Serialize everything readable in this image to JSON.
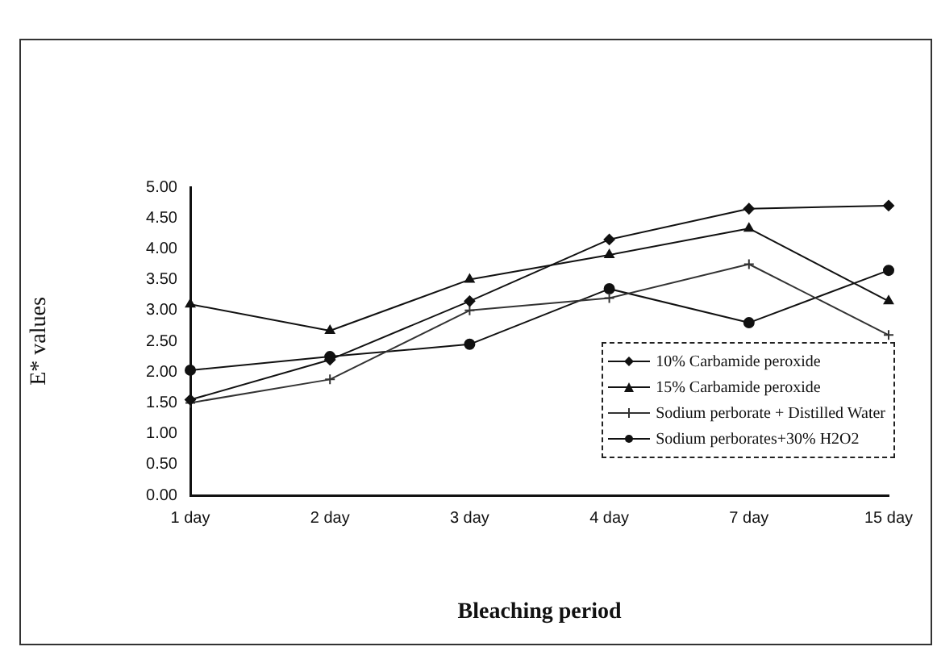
{
  "chart_data": {
    "type": "line",
    "xlabel": "Bleaching period",
    "ylabel": "E* values",
    "categories": [
      "1 day",
      "2 day",
      "3 day",
      "4 day",
      "7 day",
      "15 day"
    ],
    "ylim": [
      0,
      5
    ],
    "yticks": [
      {
        "value": 0,
        "label": "0.00"
      },
      {
        "value": 0.5,
        "label": "0.50"
      },
      {
        "value": 1,
        "label": "1.00"
      },
      {
        "value": 1.5,
        "label": "1.50"
      },
      {
        "value": 2,
        "label": "2.00"
      },
      {
        "value": 2.5,
        "label": "2.50"
      },
      {
        "value": 3,
        "label": "3.00"
      },
      {
        "value": 3.5,
        "label": "3.50"
      },
      {
        "value": 4,
        "label": "4.00"
      },
      {
        "value": 4.5,
        "label": "4.50"
      },
      {
        "value": 5,
        "label": "5.00"
      }
    ],
    "legend": "bottom right",
    "grid": false,
    "series": [
      {
        "name": "10% Carbamide peroxide",
        "color": "#111111",
        "marker": "diamond",
        "values": [
          1.55,
          2.2,
          3.15,
          4.15,
          4.65,
          4.7
        ]
      },
      {
        "name": "15% Carbamide peroxide",
        "color": "#111111",
        "marker": "triangle",
        "values": [
          3.1,
          2.67,
          3.5,
          3.9,
          4.33,
          3.15
        ]
      },
      {
        "name": "Sodium perborate + Distilled Water",
        "color": "#333333",
        "marker": "cross",
        "values": [
          1.5,
          1.88,
          3.0,
          3.2,
          3.75,
          2.6
        ]
      },
      {
        "name": "Sodium perborates+30% H2O2",
        "color": "#111111",
        "marker": "circle",
        "values": [
          2.03,
          2.25,
          2.45,
          3.35,
          2.8,
          3.65
        ]
      }
    ]
  }
}
